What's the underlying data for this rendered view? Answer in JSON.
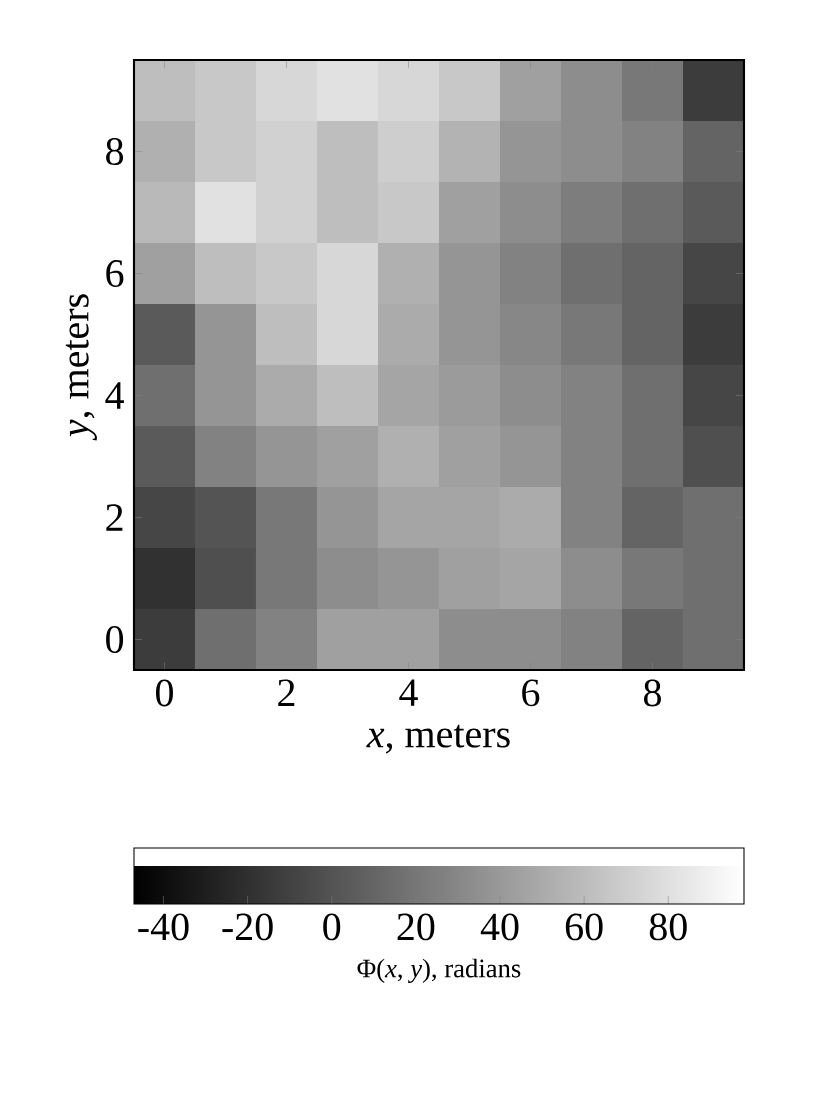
{
  "chart_data": {
    "type": "heatmap",
    "xlabel": "*x*, meters",
    "ylabel": "*y*, meters",
    "clabel": "Φ(*x*, *y*), radians",
    "categories": [
      "0",
      null,
      "2",
      null,
      "4",
      null,
      "6",
      null,
      "8",
      null
    ],
    "y_categories": [
      null,
      "8",
      null,
      "6",
      null,
      "4",
      null,
      "2",
      null,
      "0"
    ],
    "clim": [
      -47,
      98
    ],
    "cticks": [
      -40,
      -20,
      0,
      20,
      40,
      60,
      80
    ],
    "cells": [
      [
        61,
        67,
        75,
        81,
        75,
        67,
        44,
        33,
        21,
        -13
      ],
      [
        53,
        67,
        72,
        61,
        70,
        55,
        38,
        33,
        27,
        10
      ],
      [
        58,
        81,
        72,
        61,
        67,
        44,
        33,
        24,
        16,
        4
      ],
      [
        44,
        61,
        67,
        75,
        53,
        38,
        27,
        16,
        10,
        -7
      ],
      [
        4,
        38,
        61,
        75,
        50,
        38,
        30,
        21,
        10,
        -13
      ],
      [
        16,
        38,
        50,
        61,
        47,
        41,
        33,
        27,
        16,
        -7
      ],
      [
        4,
        27,
        38,
        44,
        53,
        44,
        38,
        27,
        16,
        -2
      ],
      [
        -7,
        1,
        21,
        38,
        47,
        47,
        50,
        27,
        10,
        16
      ],
      [
        -19,
        -2,
        21,
        33,
        38,
        44,
        47,
        33,
        21,
        16
      ],
      [
        -13,
        16,
        27,
        44,
        44,
        33,
        33,
        27,
        10,
        16
      ]
    ]
  }
}
